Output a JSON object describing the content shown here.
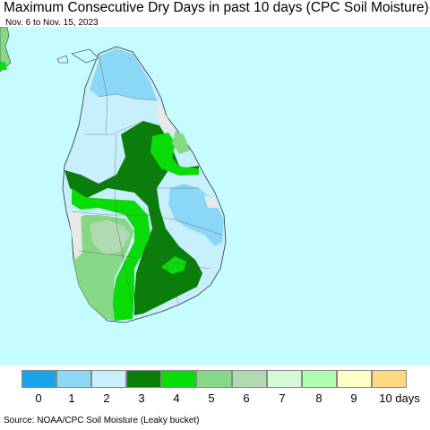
{
  "title": "Maximum Consecutive Dry Days in past 10 days (CPC Soil Moisture)",
  "date_range": "Nov. 6 to Nov. 15, 2023",
  "source": "Source: NOAA/CPC Soil Moisture (Leaky bucket)",
  "legend": {
    "colors": [
      "#1aa3e8",
      "#8ad8f5",
      "#c8f0fc",
      "#0a7d0a",
      "#0adc0a",
      "#86d886",
      "#b2dab2",
      "#d5f8d5",
      "#b2fcb2",
      "#ffffc8",
      "#ffd880"
    ],
    "labels": [
      "0",
      "1",
      "2",
      "3",
      "4",
      "5",
      "6",
      "7",
      "8",
      "9",
      "10 days"
    ]
  },
  "map": {
    "ocean_color": "#c4fcff",
    "land_gray": "#e8e8e8"
  }
}
